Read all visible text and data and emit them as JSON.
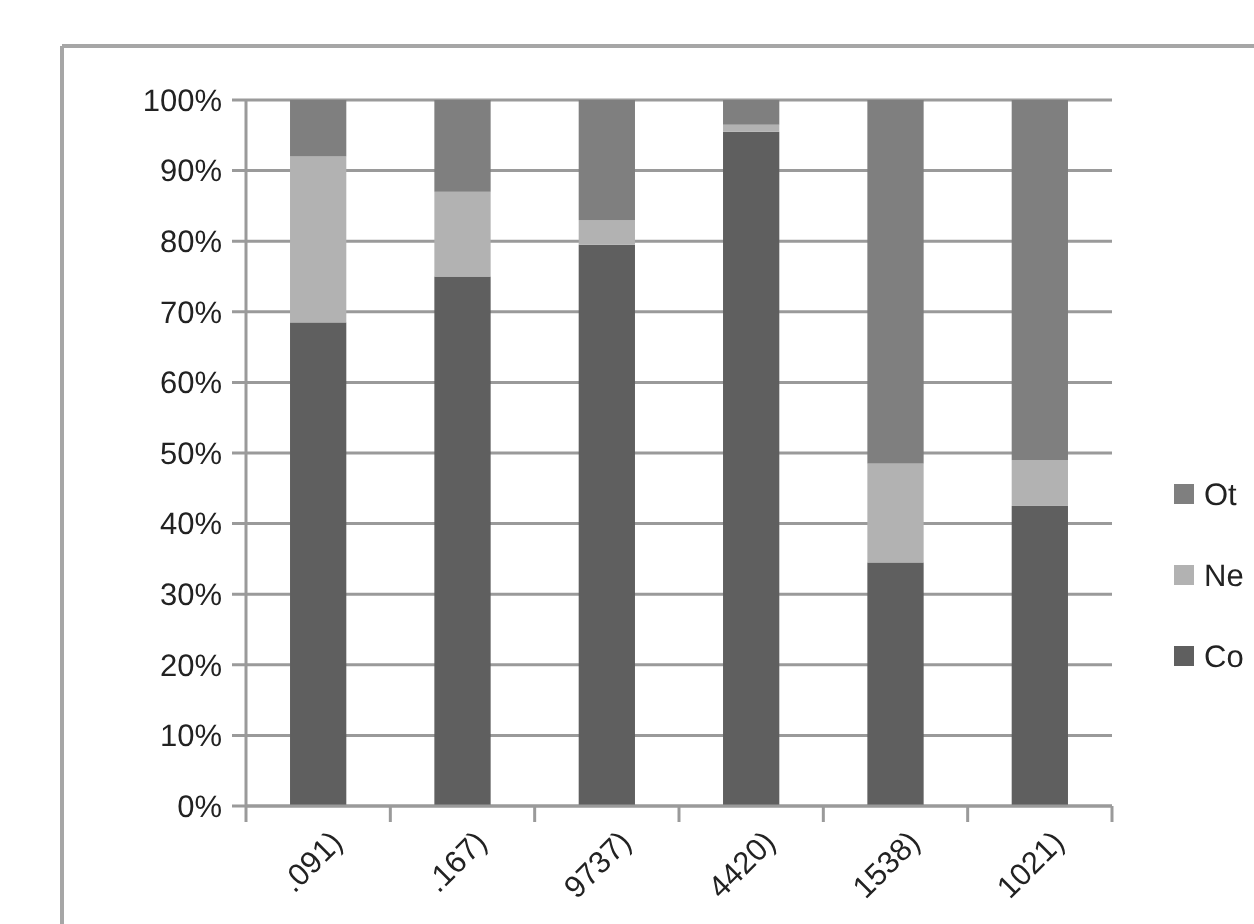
{
  "chart_data": {
    "type": "bar",
    "stacked": true,
    "categories": [
      ".091)",
      ".167)",
      "9737)",
      "4420)",
      "1538)",
      "1021)"
    ],
    "series": [
      {
        "name": "Co",
        "color": "#5f5f5f",
        "values": [
          68.5,
          75,
          79.5,
          95.5,
          34.5,
          42.5
        ]
      },
      {
        "name": "Ne",
        "color": "#b2b2b2",
        "values": [
          23.5,
          12,
          3.5,
          1,
          14,
          6.5
        ]
      },
      {
        "name": "Ot",
        "color": "#7f7f7f",
        "values": [
          8,
          13,
          17,
          3.5,
          51.5,
          51
        ]
      }
    ],
    "ylim": [
      0,
      100
    ],
    "yticks": [
      {
        "value": 0,
        "label": "0%"
      },
      {
        "value": 10,
        "label": "10%"
      },
      {
        "value": 20,
        "label": "20%"
      },
      {
        "value": 30,
        "label": "30%"
      },
      {
        "value": 40,
        "label": "40%"
      },
      {
        "value": 50,
        "label": "50%"
      },
      {
        "value": 60,
        "label": "60%"
      },
      {
        "value": 70,
        "label": "70%"
      },
      {
        "value": 80,
        "label": "80%"
      },
      {
        "value": 90,
        "label": "90%"
      },
      {
        "value": 100,
        "label": "100%"
      }
    ],
    "grid": "y",
    "legend": "right"
  }
}
